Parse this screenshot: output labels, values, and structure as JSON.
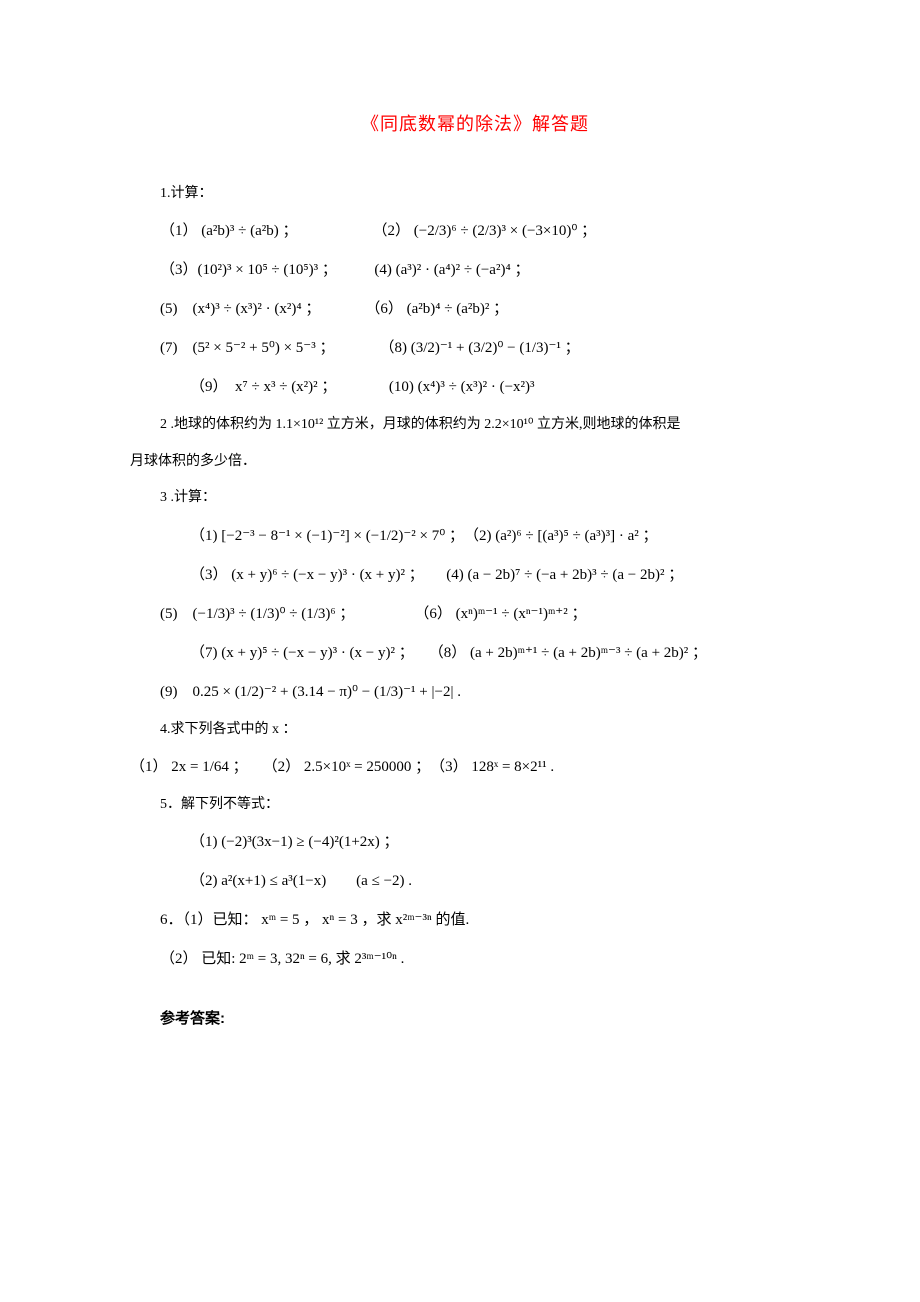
{
  "title_color": "#ff0000",
  "text_color": "#000000",
  "title": "《同底数幂的除法》解答题",
  "lines": [
    "1.计算：",
    "（1） (a²b)³ ÷ (a²b) ；　　　　　　（2） (−2/3)⁶ ÷ (2/3)³ × (−3×10)⁰ ；",
    "（3）(10²)³ × 10⁵ ÷ (10⁵)³ ；　　　(4) (a³)² · (a⁴)² ÷ (−a²)⁴ ；",
    "(5)　(x⁴)³ ÷ (x³)² · (x²)⁴ ；　　　　（6） (a²b)⁴ ÷ (a²b)² ；",
    "(7)　(5² × 5⁻² + 5⁰) × 5⁻³ ；　　　　（8) (3/2)⁻¹ + (3/2)⁰ − (1/3)⁻¹ ；",
    "（9）　x⁷ ÷ x³ ÷ (x²)² ；　　　　(10) (x⁴)³ ÷ (x³)² · (−x²)³",
    "2 .地球的体积约为 1.1×10¹² 立方米，月球的体积约为 2.2×10¹⁰ 立方米,则地球的体积是",
    "月球体积的多少倍．",
    "3 .计算：",
    "（1) [−2⁻³ − 8⁻¹ × (−1)⁻²] × (−1/2)⁻² × 7⁰ ；　（2) (a²)⁶ ÷ [(a³)⁵ ÷ (a³)³] · a² ；",
    "（3） (x + y)⁶ ÷ (−x − y)³ · (x + y)² ；　　(4) (a − 2b)⁷ ÷ (−a + 2b)³ ÷ (a − 2b)² ；",
    "(5)　(−1/3)³ ÷ (1/3)⁰ ÷ (1/3)⁶ ；　　　　　（6） (xⁿ)ᵐ⁻¹ ÷ (xⁿ⁻¹)ᵐ⁺² ；",
    "（7) (x + y)⁵ ÷ (−x − y)³ · (x − y)² ；　　（8） (a + 2b)ᵐ⁺¹ ÷ (a + 2b)ᵐ⁻³ ÷ (a + 2b)² ；",
    "(9)　0.25 × (1/2)⁻² + (3.14 − π)⁰ − (1/3)⁻¹ + |−2| .",
    "4.求下列各式中的 x ：",
    "（1） 2x = 1/64 ；　　（2） 2.5×10ˣ = 250000 ；　（3） 128ˣ = 8×2¹¹ .",
    "5．解下列不等式：",
    "（1) (−2)³(3x−1) ≥ (−4)²(1+2x) ；",
    "（2) a²(x+1) ≤ a³(1−x)　　(a ≤ −2) .",
    "6．（1）已知： xᵐ = 5 ， xⁿ = 3 ，求 x²ᵐ⁻³ⁿ 的值.",
    "（2） 已知: 2ᵐ = 3, 32ⁿ = 6, 求 2³ᵐ⁻¹⁰ⁿ .",
    "参考答案:"
  ],
  "line_classes": [
    "indent1",
    "indent1 math",
    "indent1 math",
    "indent1 math",
    "indent1 math",
    "indent2 math",
    "indent1",
    "",
    "indent1",
    "indent2 math",
    "indent2 math",
    "indent1 math",
    "indent2 math",
    "indent1 math",
    "indent1",
    "math",
    "indent1",
    "indent2 math",
    "indent2 math",
    "indent1 math",
    "indent1 math",
    "answers indent1"
  ]
}
